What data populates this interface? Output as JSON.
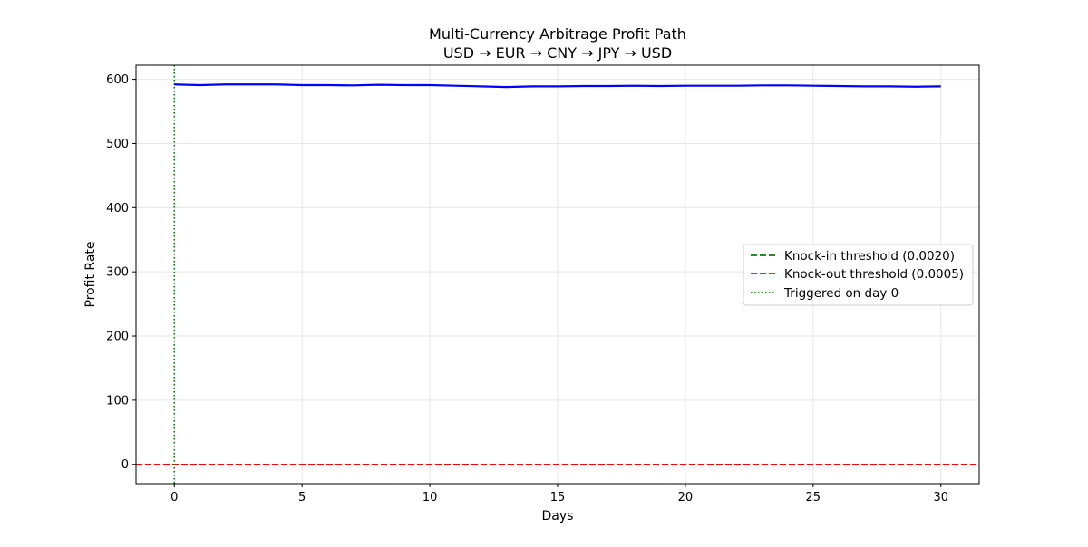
{
  "chart_data": {
    "type": "line",
    "title": "Multi-Currency Arbitrage Profit Path",
    "subtitle": "USD → EUR → CNY → JPY → USD",
    "xlabel": "Days",
    "ylabel": "Profit Rate",
    "xlim": [
      -1.5,
      31.5
    ],
    "ylim": [
      -30,
      622
    ],
    "xticks": [
      0,
      5,
      10,
      15,
      20,
      25,
      30
    ],
    "yticks": [
      0,
      100,
      200,
      300,
      400,
      500,
      600
    ],
    "grid": true,
    "legend_position": "center-right",
    "series": [
      {
        "name": "Profit rate",
        "color": "#0000ff",
        "x": [
          0,
          1,
          2,
          3,
          4,
          5,
          6,
          7,
          8,
          9,
          10,
          11,
          12,
          13,
          14,
          15,
          16,
          17,
          18,
          19,
          20,
          21,
          22,
          23,
          24,
          25,
          26,
          27,
          28,
          29,
          30
        ],
        "y": [
          592,
          591,
          592,
          592,
          592,
          591,
          591,
          590.5,
          591.5,
          591,
          591,
          590,
          589,
          588,
          589,
          589,
          589.5,
          589.5,
          590,
          589.5,
          590,
          590,
          590,
          590.5,
          590.5,
          590,
          589.5,
          589,
          589,
          588.5,
          589
        ]
      }
    ],
    "reference_lines": [
      {
        "orientation": "horizontal",
        "value": 0.002,
        "label": "Knock-in threshold (0.0020)",
        "color": "#008000",
        "style": "dashed"
      },
      {
        "orientation": "horizontal",
        "value": 0.0005,
        "label": "Knock-out threshold (0.0005)",
        "color": "#ff0000",
        "style": "dashed"
      },
      {
        "orientation": "vertical",
        "value": 0,
        "label": "Triggered on day 0",
        "color": "#008000",
        "style": "dotted"
      }
    ]
  }
}
